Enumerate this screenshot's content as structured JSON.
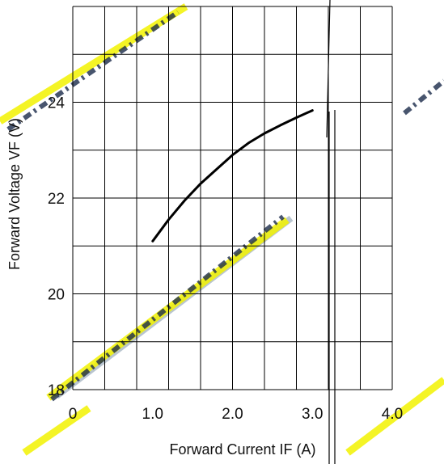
{
  "chart_data": {
    "type": "line",
    "xlabel": "Forward Current IF  (A)",
    "ylabel": "Forward  Voltage  VF  (V)",
    "xlim": [
      0,
      4.0
    ],
    "ylim": [
      18,
      26
    ],
    "x_ticks": [
      "0",
      "1.0",
      "2.0",
      "3.0",
      "4.0"
    ],
    "y_ticks": [
      "18",
      "20",
      "22",
      "24"
    ],
    "grid": true,
    "series": [
      {
        "x": [
          1.0,
          1.2,
          1.4,
          1.6,
          1.8,
          2.0,
          2.2,
          2.4,
          2.6,
          2.8,
          3.0
        ],
        "values": [
          21.1,
          21.55,
          21.95,
          22.3,
          22.6,
          22.9,
          23.15,
          23.35,
          23.52,
          23.68,
          23.83
        ]
      }
    ]
  }
}
